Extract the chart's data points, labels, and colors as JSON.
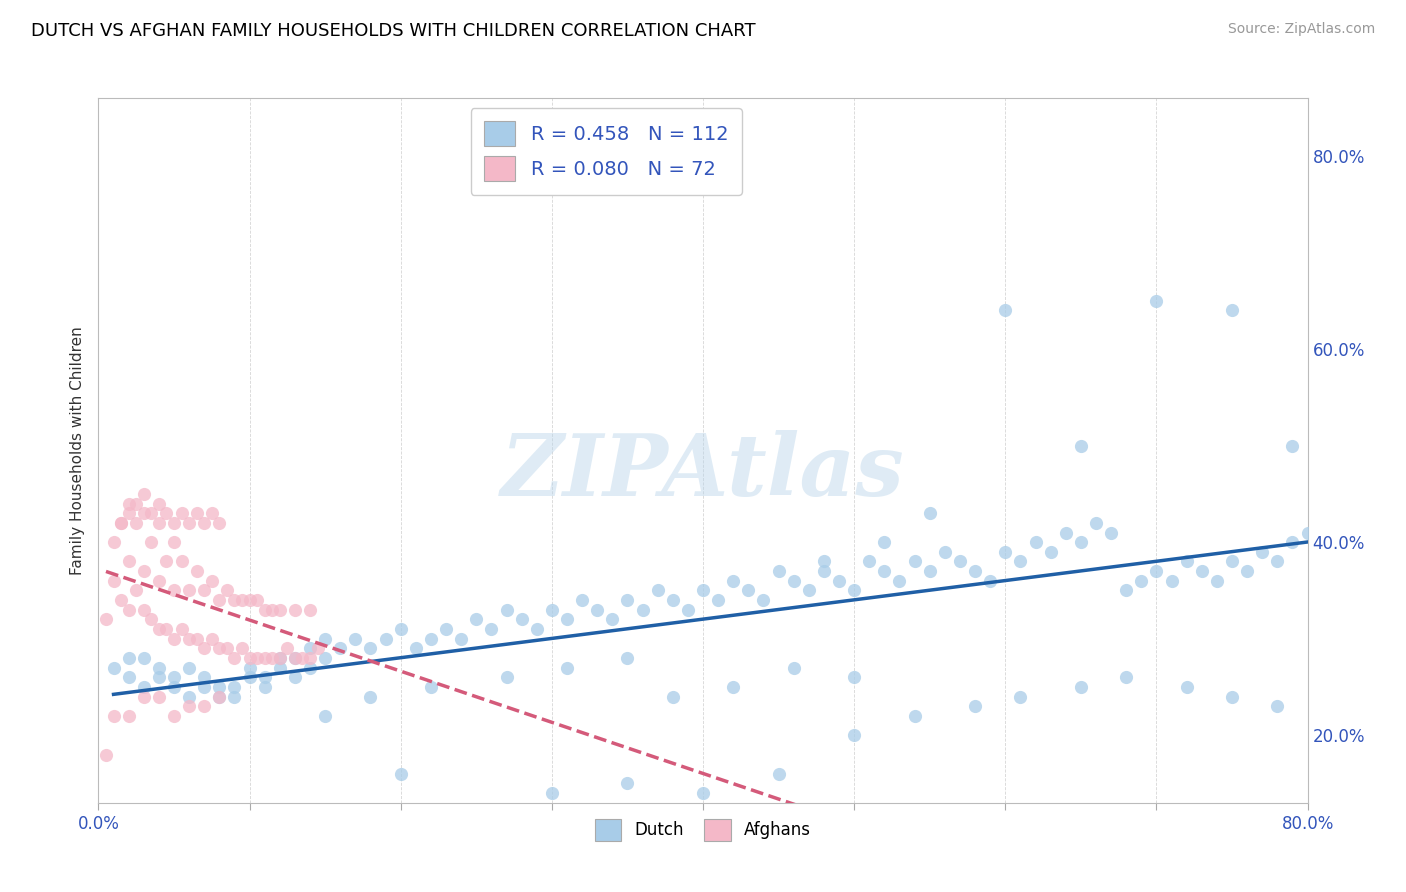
{
  "title": "DUTCH VS AFGHAN FAMILY HOUSEHOLDS WITH CHILDREN CORRELATION CHART",
  "source": "Source: ZipAtlas.com",
  "ylabel": "Family Households with Children",
  "xlim": [
    0.0,
    0.8
  ],
  "ylim": [
    0.13,
    0.86
  ],
  "dutch_color": "#a8cce8",
  "afghan_color": "#f4b8c8",
  "dutch_line_color": "#1f5fa6",
  "afghan_line_color": "#d45a7a",
  "watermark": "ZIPAtlas",
  "legend_dutch_R": "0.458",
  "legend_dutch_N": "112",
  "legend_afghan_R": "0.080",
  "legend_afghan_N": "72",
  "dutch_scatter_x": [
    0.01,
    0.02,
    0.02,
    0.03,
    0.03,
    0.04,
    0.04,
    0.05,
    0.05,
    0.06,
    0.06,
    0.07,
    0.07,
    0.08,
    0.08,
    0.09,
    0.09,
    0.1,
    0.1,
    0.11,
    0.11,
    0.12,
    0.12,
    0.13,
    0.13,
    0.14,
    0.14,
    0.15,
    0.15,
    0.16,
    0.17,
    0.18,
    0.19,
    0.2,
    0.21,
    0.22,
    0.23,
    0.24,
    0.25,
    0.26,
    0.27,
    0.28,
    0.29,
    0.3,
    0.31,
    0.32,
    0.33,
    0.34,
    0.35,
    0.36,
    0.37,
    0.38,
    0.39,
    0.4,
    0.41,
    0.42,
    0.43,
    0.44,
    0.45,
    0.46,
    0.47,
    0.48,
    0.49,
    0.5,
    0.51,
    0.52,
    0.53,
    0.54,
    0.55,
    0.56,
    0.57,
    0.58,
    0.59,
    0.6,
    0.61,
    0.62,
    0.63,
    0.64,
    0.65,
    0.66,
    0.67,
    0.68,
    0.69,
    0.7,
    0.71,
    0.72,
    0.73,
    0.74,
    0.75,
    0.76,
    0.77,
    0.78,
    0.79,
    0.8,
    0.15,
    0.18,
    0.22,
    0.27,
    0.31,
    0.35,
    0.38,
    0.42,
    0.46,
    0.5,
    0.54,
    0.58,
    0.61,
    0.65,
    0.68,
    0.72,
    0.75,
    0.78
  ],
  "dutch_scatter_y": [
    0.27,
    0.26,
    0.28,
    0.25,
    0.28,
    0.26,
    0.27,
    0.25,
    0.26,
    0.24,
    0.27,
    0.25,
    0.26,
    0.24,
    0.25,
    0.24,
    0.25,
    0.26,
    0.27,
    0.25,
    0.26,
    0.27,
    0.28,
    0.26,
    0.28,
    0.27,
    0.29,
    0.28,
    0.3,
    0.29,
    0.3,
    0.29,
    0.3,
    0.31,
    0.29,
    0.3,
    0.31,
    0.3,
    0.32,
    0.31,
    0.33,
    0.32,
    0.31,
    0.33,
    0.32,
    0.34,
    0.33,
    0.32,
    0.34,
    0.33,
    0.35,
    0.34,
    0.33,
    0.35,
    0.34,
    0.36,
    0.35,
    0.34,
    0.37,
    0.36,
    0.35,
    0.37,
    0.36,
    0.35,
    0.38,
    0.37,
    0.36,
    0.38,
    0.37,
    0.39,
    0.38,
    0.37,
    0.36,
    0.39,
    0.38,
    0.4,
    0.39,
    0.41,
    0.4,
    0.42,
    0.41,
    0.35,
    0.36,
    0.37,
    0.36,
    0.38,
    0.37,
    0.36,
    0.38,
    0.37,
    0.39,
    0.38,
    0.4,
    0.41,
    0.22,
    0.24,
    0.25,
    0.26,
    0.27,
    0.28,
    0.24,
    0.25,
    0.27,
    0.26,
    0.22,
    0.23,
    0.24,
    0.25,
    0.26,
    0.25,
    0.24,
    0.23
  ],
  "dutch_extra_x": [
    0.3,
    0.35,
    0.4,
    0.45,
    0.5,
    0.2,
    0.55,
    0.6,
    0.65,
    0.7,
    0.75,
    0.79,
    0.48,
    0.52
  ],
  "dutch_extra_y": [
    0.14,
    0.15,
    0.14,
    0.16,
    0.2,
    0.16,
    0.43,
    0.64,
    0.5,
    0.65,
    0.64,
    0.5,
    0.38,
    0.4
  ],
  "afghan_scatter_x": [
    0.005,
    0.01,
    0.01,
    0.015,
    0.015,
    0.02,
    0.02,
    0.02,
    0.025,
    0.025,
    0.03,
    0.03,
    0.03,
    0.035,
    0.035,
    0.04,
    0.04,
    0.04,
    0.045,
    0.045,
    0.05,
    0.05,
    0.05,
    0.055,
    0.055,
    0.06,
    0.06,
    0.065,
    0.065,
    0.07,
    0.07,
    0.075,
    0.075,
    0.08,
    0.08,
    0.085,
    0.085,
    0.09,
    0.09,
    0.095,
    0.095,
    0.1,
    0.1,
    0.105,
    0.105,
    0.11,
    0.11,
    0.115,
    0.115,
    0.12,
    0.12,
    0.125,
    0.13,
    0.13,
    0.135,
    0.14,
    0.14,
    0.145,
    0.015,
    0.02,
    0.025,
    0.03,
    0.035,
    0.04,
    0.045,
    0.05,
    0.055,
    0.06,
    0.065,
    0.07,
    0.075,
    0.08
  ],
  "afghan_scatter_y": [
    0.32,
    0.36,
    0.4,
    0.34,
    0.42,
    0.33,
    0.38,
    0.44,
    0.35,
    0.42,
    0.33,
    0.37,
    0.43,
    0.32,
    0.4,
    0.31,
    0.36,
    0.42,
    0.31,
    0.38,
    0.3,
    0.35,
    0.4,
    0.31,
    0.38,
    0.3,
    0.35,
    0.3,
    0.37,
    0.29,
    0.35,
    0.3,
    0.36,
    0.29,
    0.34,
    0.29,
    0.35,
    0.28,
    0.34,
    0.29,
    0.34,
    0.28,
    0.34,
    0.28,
    0.34,
    0.28,
    0.33,
    0.28,
    0.33,
    0.28,
    0.33,
    0.29,
    0.28,
    0.33,
    0.28,
    0.28,
    0.33,
    0.29,
    0.42,
    0.43,
    0.44,
    0.45,
    0.43,
    0.44,
    0.43,
    0.42,
    0.43,
    0.42,
    0.43,
    0.42,
    0.43,
    0.42
  ],
  "afghan_extra_x": [
    0.005,
    0.01,
    0.02,
    0.03,
    0.04,
    0.05,
    0.06,
    0.07,
    0.08
  ],
  "afghan_extra_y": [
    0.18,
    0.22,
    0.22,
    0.24,
    0.24,
    0.22,
    0.23,
    0.23,
    0.24
  ]
}
